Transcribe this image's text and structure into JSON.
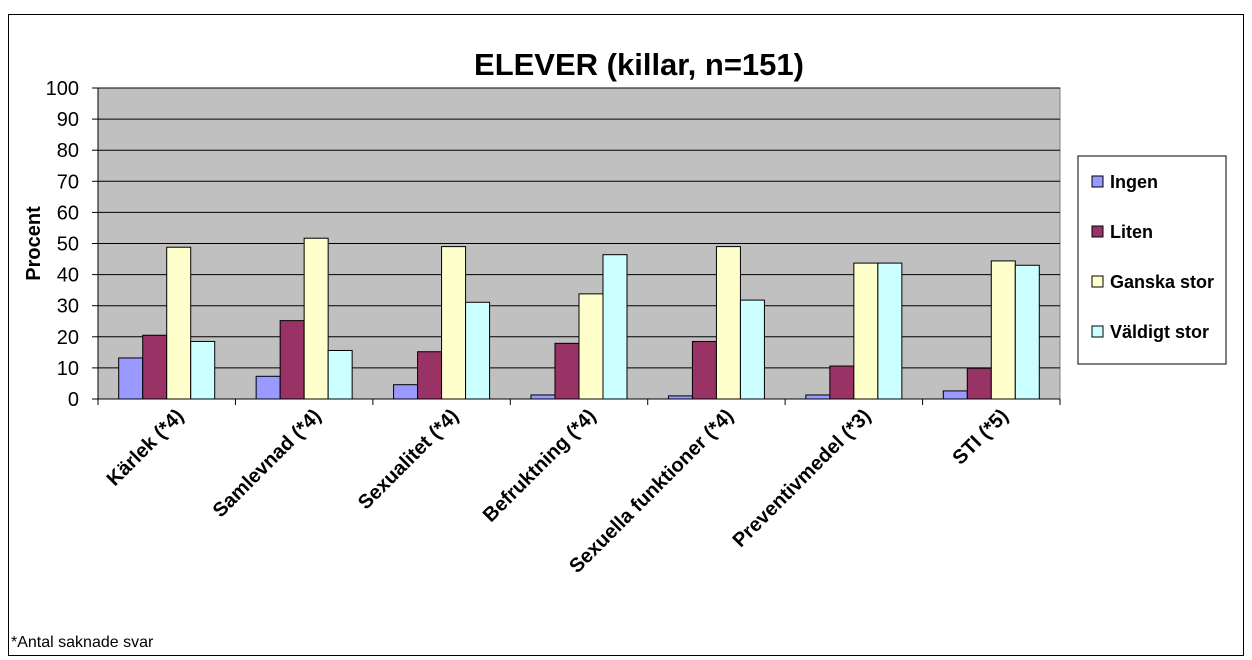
{
  "chart_data": {
    "type": "bar",
    "title": "ELEVER (killar, n=151)",
    "xlabel": "",
    "ylabel": "Procent",
    "ylim": [
      0,
      100
    ],
    "yticks": [
      0,
      10,
      20,
      30,
      40,
      50,
      60,
      70,
      80,
      90,
      100
    ],
    "grid": true,
    "legend_position": "right",
    "categories": [
      "Kärlek (*4)",
      "Samlevnad (*4)",
      "Sexualitet (*4)",
      "Befruktning (*4)",
      "Sexuella funktioner (*4)",
      "Preventivmedel (*3)",
      "STI (*5)"
    ],
    "series": [
      {
        "name": "Ingen",
        "color": "#9999FF",
        "values": [
          13.2,
          7.3,
          4.6,
          1.3,
          1.0,
          1.3,
          2.6
        ]
      },
      {
        "name": "Liten",
        "color": "#993366",
        "values": [
          20.5,
          25.2,
          15.2,
          17.9,
          18.5,
          10.6,
          9.9
        ]
      },
      {
        "name": "Ganska stor",
        "color": "#FFFFCC",
        "values": [
          48.8,
          51.7,
          49.0,
          33.8,
          49.0,
          43.7,
          44.4
        ]
      },
      {
        "name": "Väldigt stor",
        "color": "#CCFFFF",
        "values": [
          18.5,
          15.6,
          31.1,
          46.4,
          31.8,
          43.7,
          43.0
        ]
      }
    ],
    "plot_background": "#C0C0C0"
  },
  "footnote": "*Antal saknade svar"
}
